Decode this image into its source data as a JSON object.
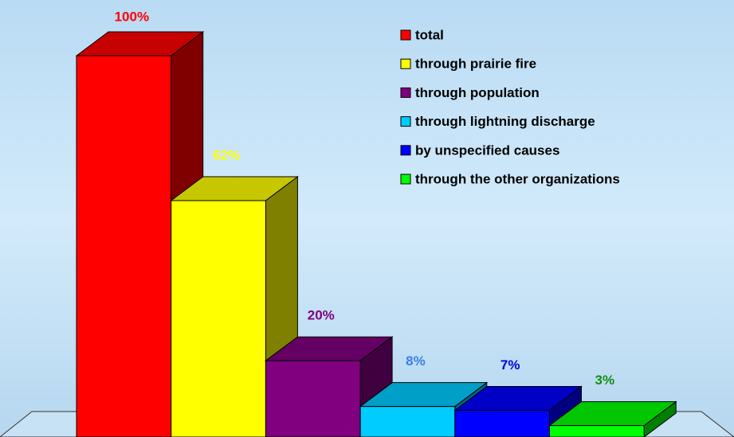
{
  "chart_data": {
    "type": "bar3d",
    "categories": [
      "total",
      "through prairie fire",
      "through population",
      "through lightning discharge",
      "by unspecified causes",
      "through the other organizations"
    ],
    "values": [
      100,
      62,
      20,
      8,
      7,
      3
    ],
    "value_labels": [
      "100%",
      "62%",
      "20%",
      "8%",
      "7%",
      "3%"
    ],
    "colors": [
      "#ff0000",
      "#ffff00",
      "#800080",
      "#00ccff",
      "#0000ff",
      "#00ff00"
    ],
    "label_colors": [
      "#ff0000",
      "#ffff00",
      "#800080",
      "#3a80e0",
      "#0000e0",
      "#109010"
    ],
    "ylim": [
      0,
      100
    ],
    "legend": "top-right"
  }
}
